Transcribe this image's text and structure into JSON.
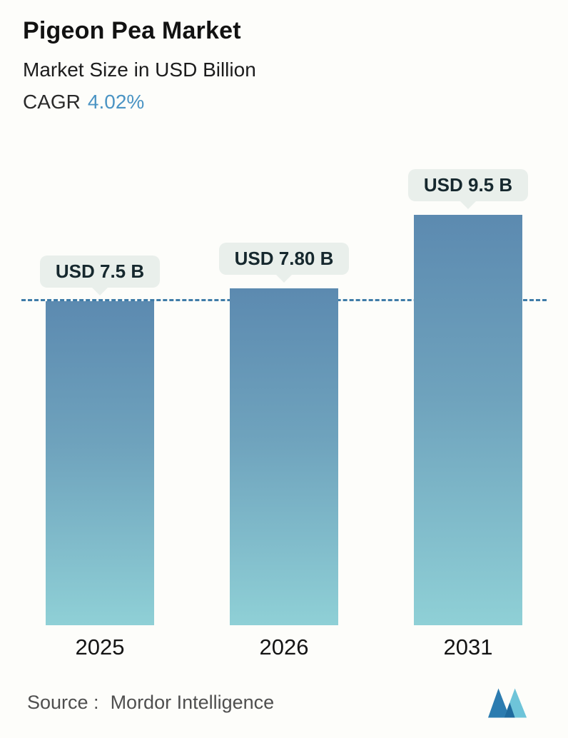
{
  "header": {
    "title": "Pigeon Pea Market",
    "subtitle": "Market Size in USD Billion",
    "cagr_label": "CAGR",
    "cagr_value": "4.02%"
  },
  "chart_data": {
    "type": "bar",
    "title": "Pigeon Pea Market",
    "subtitle": "Market Size in USD Billion",
    "unit": "USD Billion",
    "categories": [
      "2025",
      "2026",
      "2031"
    ],
    "values": [
      7.5,
      7.8,
      9.5
    ],
    "bar_labels": [
      "USD 7.5 B",
      "USD 7.80 B",
      "USD 9.5 B"
    ],
    "reference_line_value": 7.5,
    "ylim": [
      0,
      10
    ],
    "grid": "off",
    "legend": "none",
    "colors": {
      "bar_gradient_top": "#5c8ab0",
      "bar_gradient_bottom": "#8fd0d6",
      "reference_line": "#3f7ca8",
      "label_bubble_bg": "#e9efeb",
      "cagr_accent": "#4b94c4"
    }
  },
  "footer": {
    "source_label": "Source :",
    "source_value": "Mordor Intelligence",
    "logo": "mordor-intelligence-logo"
  }
}
